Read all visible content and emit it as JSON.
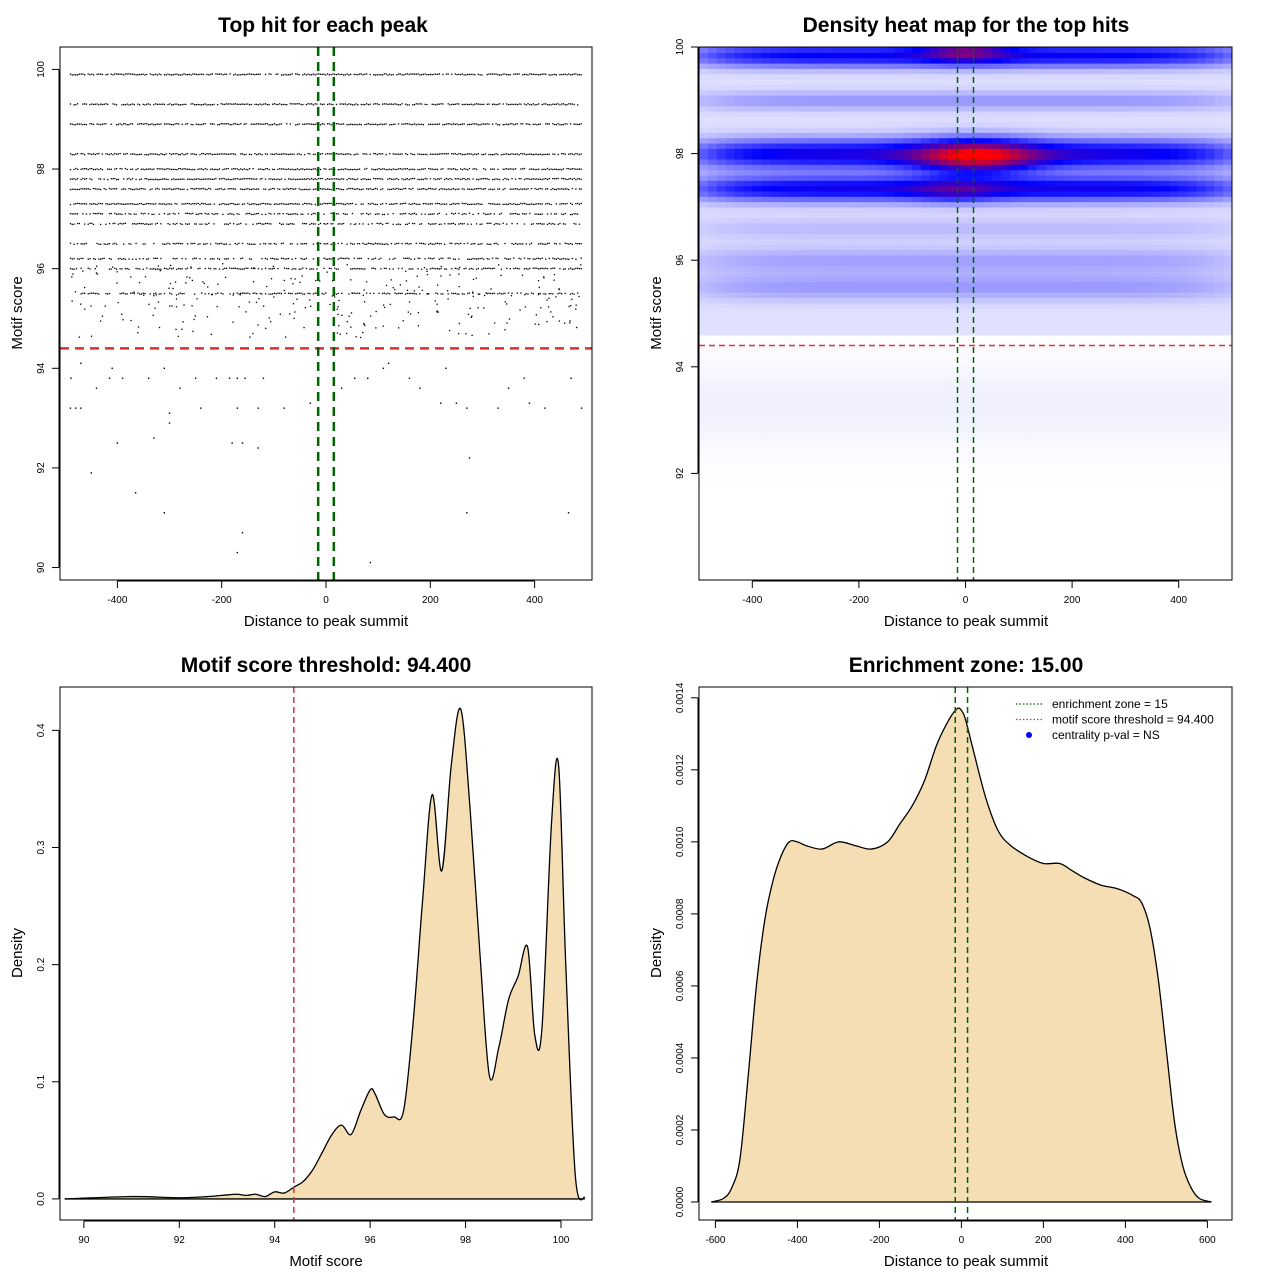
{
  "chart_data": [
    {
      "id": "scatter",
      "type": "scatter",
      "title": "Top hit for each peak",
      "xlabel": "Distance to peak summit",
      "ylabel": "Motif score",
      "xlim": [
        -510,
        510
      ],
      "ylim": [
        89.75,
        100.45
      ],
      "xticks": [
        "-400",
        "-200",
        "0",
        "200",
        "400"
      ],
      "yticks": [
        "90",
        "92",
        "94",
        "96",
        "98",
        "100"
      ],
      "threshold": 94.4,
      "zone": [
        -15,
        15
      ],
      "dense_rows": [
        99.9,
        99.3,
        98.9,
        98.3,
        98.0,
        97.8,
        97.6,
        97.3,
        97.1,
        96.9,
        96.5,
        96.2,
        96.0,
        95.5
      ],
      "points": [
        [
          -490,
          93.2
        ],
        [
          -480,
          93.2
        ],
        [
          -470,
          93.2
        ],
        [
          -489,
          93.8
        ],
        [
          -470,
          94.1
        ],
        [
          -415,
          93.8
        ],
        [
          -410,
          94.0
        ],
        [
          -440,
          93.6
        ],
        [
          -390,
          93.8
        ],
        [
          -340,
          93.8
        ],
        [
          -310,
          94.0
        ],
        [
          -280,
          93.6
        ],
        [
          -250,
          93.8
        ],
        [
          -210,
          93.8
        ],
        [
          -185,
          93.8
        ],
        [
          -170,
          93.8
        ],
        [
          -155,
          93.8
        ],
        [
          -120,
          93.8
        ],
        [
          -300,
          93.1
        ],
        [
          -240,
          93.2
        ],
        [
          -300,
          92.9
        ],
        [
          -170,
          93.2
        ],
        [
          -130,
          93.2
        ],
        [
          -80,
          93.2
        ],
        [
          -400,
          92.5
        ],
        [
          -330,
          92.6
        ],
        [
          -180,
          92.5
        ],
        [
          -160,
          92.5
        ],
        [
          -130,
          92.4
        ],
        [
          -450,
          91.9
        ],
        [
          -365,
          91.5
        ],
        [
          -310,
          91.1
        ],
        [
          -160,
          90.7
        ],
        [
          -170,
          90.3
        ],
        [
          85,
          90.1
        ],
        [
          80,
          93.8
        ],
        [
          55,
          93.8
        ],
        [
          110,
          94.0
        ],
        [
          120,
          94.1
        ],
        [
          160,
          93.8
        ],
        [
          180,
          93.6
        ],
        [
          230,
          94.0
        ],
        [
          220,
          93.3
        ],
        [
          250,
          93.3
        ],
        [
          270,
          93.2
        ],
        [
          275,
          92.2
        ],
        [
          270,
          91.1
        ],
        [
          330,
          93.2
        ],
        [
          350,
          93.6
        ],
        [
          380,
          93.8
        ],
        [
          390,
          93.3
        ],
        [
          420,
          93.2
        ],
        [
          470,
          93.8
        ],
        [
          465,
          91.1
        ],
        [
          490,
          93.2
        ],
        [
          30,
          93.6
        ],
        [
          -30,
          93.3
        ]
      ]
    },
    {
      "id": "heatmap",
      "type": "heatmap",
      "title": "Density heat map for the top hits",
      "xlabel": "Distance to peak summit",
      "ylabel": "Motif score",
      "xlim": [
        -500,
        500
      ],
      "ylim": [
        90.0,
        100.0
      ],
      "xticks": [
        "-400",
        "-200",
        "0",
        "200",
        "400"
      ],
      "yticks": [
        "92",
        "94",
        "96",
        "98",
        "100"
      ],
      "threshold": 94.4,
      "zone": [
        -15,
        15
      ],
      "colors": {
        "low": "#ffffff",
        "mid": "#0000ff",
        "high": "#ff0000"
      },
      "bands": [
        {
          "y": 98.0,
          "width": 0.28,
          "level": 1.0
        },
        {
          "y": 97.35,
          "width": 0.24,
          "level": 0.95
        },
        {
          "y": 99.85,
          "width": 0.22,
          "level": 0.9
        },
        {
          "y": 99.0,
          "width": 0.18,
          "level": 0.3
        },
        {
          "y": 96.0,
          "width": 0.25,
          "level": 0.25
        },
        {
          "y": 95.5,
          "width": 0.25,
          "level": 0.28
        },
        {
          "y": 96.6,
          "width": 0.2,
          "level": 0.15
        }
      ],
      "hotspots": [
        {
          "x": 20,
          "y": 97.95,
          "sx": 110,
          "sy": 0.32,
          "level": 1.0
        },
        {
          "x": 0,
          "y": 99.95,
          "sx": 80,
          "sy": 0.22,
          "level": 0.6
        },
        {
          "x": -20,
          "y": 97.3,
          "sx": 80,
          "sy": 0.22,
          "level": 0.3
        }
      ]
    },
    {
      "id": "score_density",
      "type": "area",
      "title": "Motif score threshold: 94.400",
      "xlabel": "Motif score",
      "ylabel": "Density",
      "xlim": [
        89.5,
        100.65
      ],
      "ylim": [
        -0.018,
        0.437
      ],
      "xticks": [
        "90",
        "92",
        "94",
        "96",
        "98",
        "100"
      ],
      "yticks": [
        "0.0",
        "0.1",
        "0.2",
        "0.3",
        "0.4"
      ],
      "threshold": 94.4,
      "fill": "#f5deb3",
      "x": [
        89.6,
        91.0,
        92.0,
        92.6,
        92.9,
        93.2,
        93.4,
        93.6,
        93.8,
        94.0,
        94.2,
        94.4,
        94.6,
        94.8,
        95.0,
        95.2,
        95.4,
        95.6,
        95.8,
        96.0,
        96.1,
        96.3,
        96.5,
        96.7,
        96.9,
        97.1,
        97.3,
        97.5,
        97.7,
        97.9,
        98.1,
        98.3,
        98.5,
        98.7,
        98.9,
        99.1,
        99.3,
        99.45,
        99.6,
        99.8,
        99.95,
        100.1,
        100.3,
        100.5
      ],
      "y": [
        0.0,
        0.002,
        0.001,
        0.002,
        0.003,
        0.004,
        0.003,
        0.004,
        0.002,
        0.006,
        0.005,
        0.01,
        0.015,
        0.025,
        0.04,
        0.055,
        0.063,
        0.055,
        0.075,
        0.093,
        0.09,
        0.072,
        0.07,
        0.075,
        0.15,
        0.255,
        0.345,
        0.28,
        0.37,
        0.418,
        0.33,
        0.21,
        0.105,
        0.13,
        0.17,
        0.19,
        0.215,
        0.14,
        0.145,
        0.32,
        0.37,
        0.2,
        0.02,
        0.001
      ]
    },
    {
      "id": "distance_density",
      "type": "area",
      "title": "Enrichment zone: 15.00",
      "xlabel": "Distance to peak summit",
      "ylabel": "Density",
      "xlim": [
        -640,
        660
      ],
      "ylim": [
        -5e-05,
        0.00143
      ],
      "xticks": [
        "-600",
        "-400",
        "-200",
        "0",
        "200",
        "400",
        "600"
      ],
      "yticks": [
        "0.0000",
        "0.0002",
        "0.0004",
        "0.0006",
        "0.0008",
        "0.0010",
        "0.0012",
        "0.0014"
      ],
      "zone": [
        -15,
        15
      ],
      "fill": "#f5deb3",
      "legend": {
        "position": "top-right",
        "entries": [
          {
            "label": "enrichment zone = 15",
            "color": "#006400",
            "kind": "dotted-line"
          },
          {
            "label": "motif score threshold = 94.400",
            "color": "#e0303a",
            "kind": "dotted-line"
          },
          {
            "label": "centrality p-val = NS",
            "color": "#0000ff",
            "kind": "dot"
          }
        ]
      },
      "x": [
        -610,
        -580,
        -560,
        -540,
        -520,
        -500,
        -480,
        -460,
        -440,
        -420,
        -400,
        -380,
        -340,
        -300,
        -260,
        -220,
        -180,
        -150,
        -120,
        -90,
        -60,
        -30,
        -10,
        0,
        10,
        30,
        60,
        90,
        120,
        160,
        200,
        240,
        270,
        300,
        340,
        380,
        420,
        440,
        460,
        480,
        500,
        520,
        540,
        560,
        580,
        610
      ],
      "y": [
        0.0,
        1e-05,
        4e-05,
        0.00012,
        0.00035,
        0.0006,
        0.00078,
        0.00089,
        0.00096,
        0.001,
        0.001,
        0.00099,
        0.00098,
        0.001,
        0.00099,
        0.00098,
        0.001,
        0.00105,
        0.0011,
        0.00117,
        0.00127,
        0.00134,
        0.00137,
        0.001365,
        0.00134,
        0.00125,
        0.00112,
        0.00103,
        0.00099,
        0.00096,
        0.00094,
        0.00094,
        0.00092,
        0.0009,
        0.00088,
        0.00087,
        0.00085,
        0.00083,
        0.00076,
        0.00062,
        0.00042,
        0.00022,
        0.0001,
        4e-05,
        1e-05,
        0.0
      ]
    }
  ]
}
